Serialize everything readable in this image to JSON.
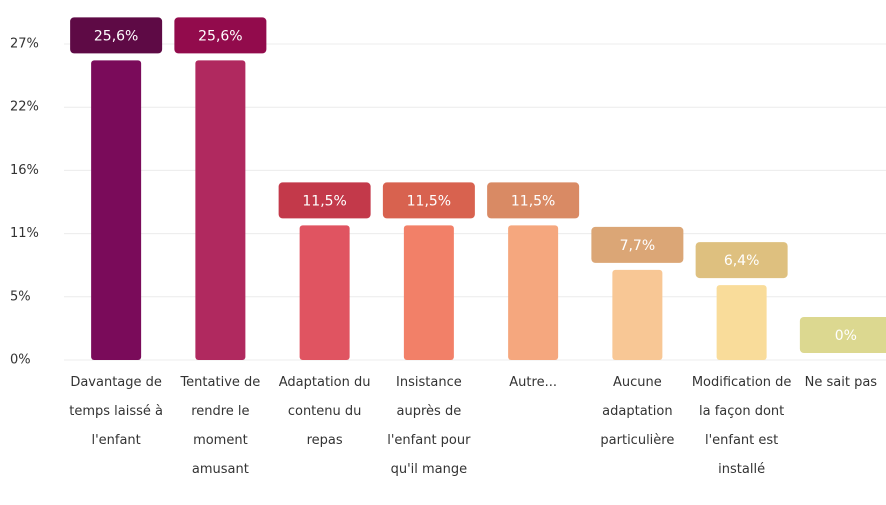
{
  "chart_data": {
    "type": "bar",
    "categories": [
      "Davantage de temps laissé à l'enfant",
      "Tentative de rendre le moment amusant",
      "Adaptation du contenu du repas",
      "Insistance auprès de l'enfant pour qu'il mange",
      "Autre...",
      "Aucune adaptation particulière",
      "Modification de la façon dont l'enfant est installé",
      "Ne sait pas"
    ],
    "values": [
      25.6,
      25.6,
      11.5,
      11.5,
      11.5,
      7.7,
      6.4,
      0
    ],
    "value_labels": [
      "25,6%",
      "25,6%",
      "11,5%",
      "11,5%",
      "11,5%",
      "7,7%",
      "6,4%",
      "0%"
    ],
    "colors": [
      "#7a0b5a",
      "#b0295f",
      "#e05461",
      "#f28068",
      "#f5a77e",
      "#f8c795",
      "#f9dc9a",
      "#e6e29a"
    ],
    "label_colors": [
      "#5e0a45",
      "#920b4c",
      "#c3394a",
      "#d8624f",
      "#d98a64",
      "#dba676",
      "#dec07f",
      "#dcd890"
    ],
    "ylim": [
      0,
      27
    ],
    "yticks": [
      {
        "value": 0,
        "label": "0%"
      },
      {
        "value": 5.4,
        "label": "5%"
      },
      {
        "value": 10.8,
        "label": "11%"
      },
      {
        "value": 16.2,
        "label": "16%"
      },
      {
        "value": 21.6,
        "label": "22%"
      },
      {
        "value": 27,
        "label": "27%"
      }
    ],
    "grid": true
  }
}
